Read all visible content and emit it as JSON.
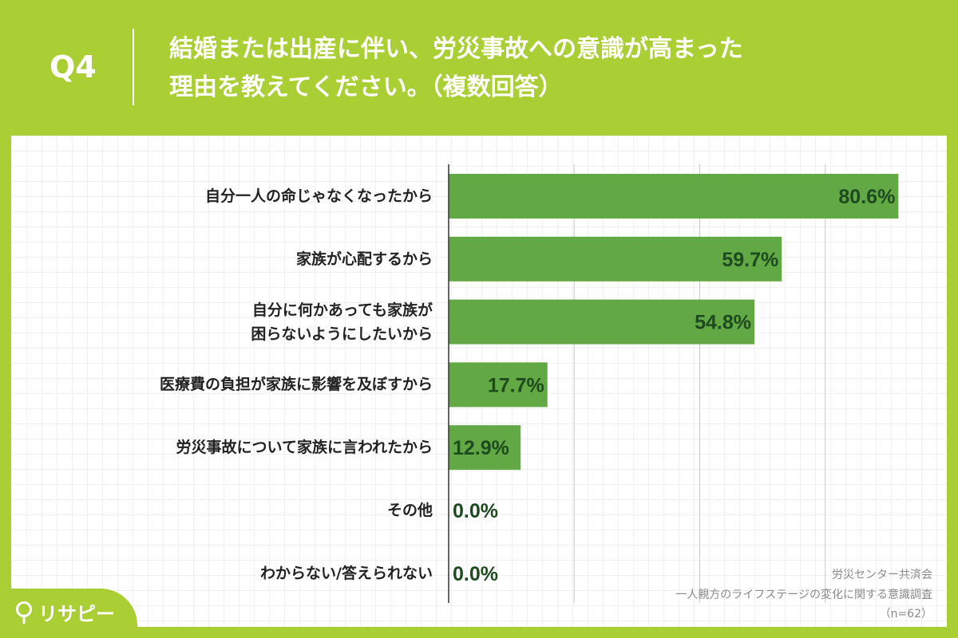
{
  "header": {
    "q_label": "Q4",
    "title_line1": "結婚または出産に伴い、労災事故への意識が高まった",
    "title_line2": "理由を教えてください。（複数回答）"
  },
  "chart_data": {
    "type": "bar",
    "orientation": "horizontal",
    "categories": [
      [
        "自分一人の命じゃなくなったから"
      ],
      [
        "家族が心配するから"
      ],
      [
        "自分に何かあっても家族が",
        "困らないようにしたいから"
      ],
      [
        "医療費の負担が家族に影響を及ぼすから"
      ],
      [
        "労災事故について家族に言われたから"
      ],
      [
        "その他"
      ],
      [
        "わからない/答えられない"
      ]
    ],
    "values": [
      80.6,
      59.7,
      54.8,
      17.7,
      12.9,
      0.0,
      0.0
    ],
    "value_labels": [
      "80.6%",
      "59.7%",
      "54.8%",
      "17.7%",
      "12.9%",
      "0.0%",
      "0.0%"
    ],
    "xlim": [
      0,
      90
    ],
    "grid_x": [
      22.5,
      45,
      67.5
    ],
    "bar_color": "#62a844",
    "label_color": "#1d4a1f"
  },
  "source": {
    "org": "労災センター共済会",
    "survey": "一人親方のライフステージの変化に関する意識調査",
    "n": "（n=62）"
  },
  "logo": {
    "text": "リサピー"
  }
}
